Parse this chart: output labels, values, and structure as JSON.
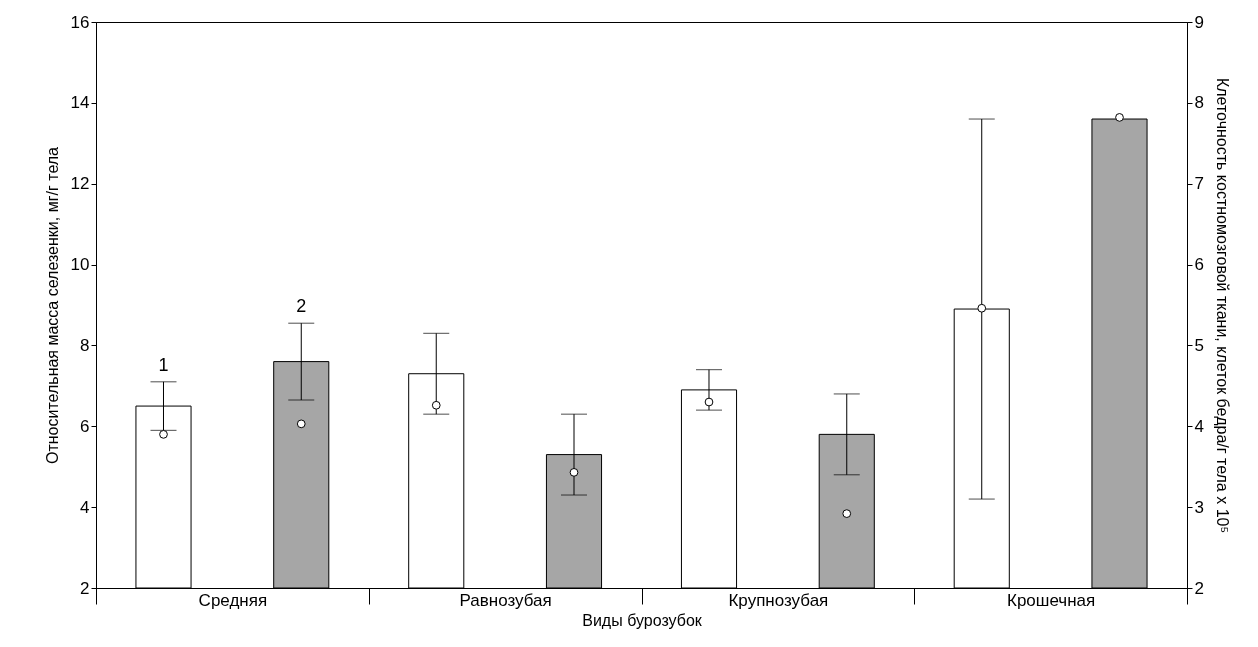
{
  "chart_data": {
    "type": "bar",
    "xlabel": "Виды бурозубок",
    "ylabel": "Относительная масса селезенки, мг/г тела",
    "y2label": "Клеточность костномозговой ткани, клеток бедра/г тела x 10⁵",
    "categories": [
      "Средняя",
      "Равнозубая",
      "Крупнозубая",
      "Крошечная"
    ],
    "series": [
      {
        "name": "1",
        "color": "#ffffff",
        "values": [
          6.5,
          7.3,
          6.9,
          8.9
        ],
        "errors": [
          0.6,
          1.0,
          0.5,
          4.7
        ]
      },
      {
        "name": "2",
        "color": "#a6a6a6",
        "values": [
          7.6,
          5.3,
          5.8,
          13.6
        ],
        "errors": [
          0.95,
          1.0,
          1.0,
          null
        ]
      },
      {
        "type": "scatter",
        "axis": "y2",
        "color": "#ffffff",
        "values": [
          3.9,
          4.26,
          4.3,
          5.46
        ]
      },
      {
        "type": "scatter",
        "axis": "y2",
        "color": "#ffffff",
        "values": [
          4.03,
          3.43,
          2.92,
          7.82
        ]
      }
    ],
    "ylim": [
      2,
      16
    ],
    "yticks": [
      2,
      4,
      6,
      8,
      10,
      12,
      14,
      16
    ],
    "y2lim": [
      2,
      9
    ],
    "y2ticks": [
      2,
      3,
      4,
      5,
      6,
      7,
      8,
      9
    ],
    "grid": false,
    "marker": "circle"
  }
}
